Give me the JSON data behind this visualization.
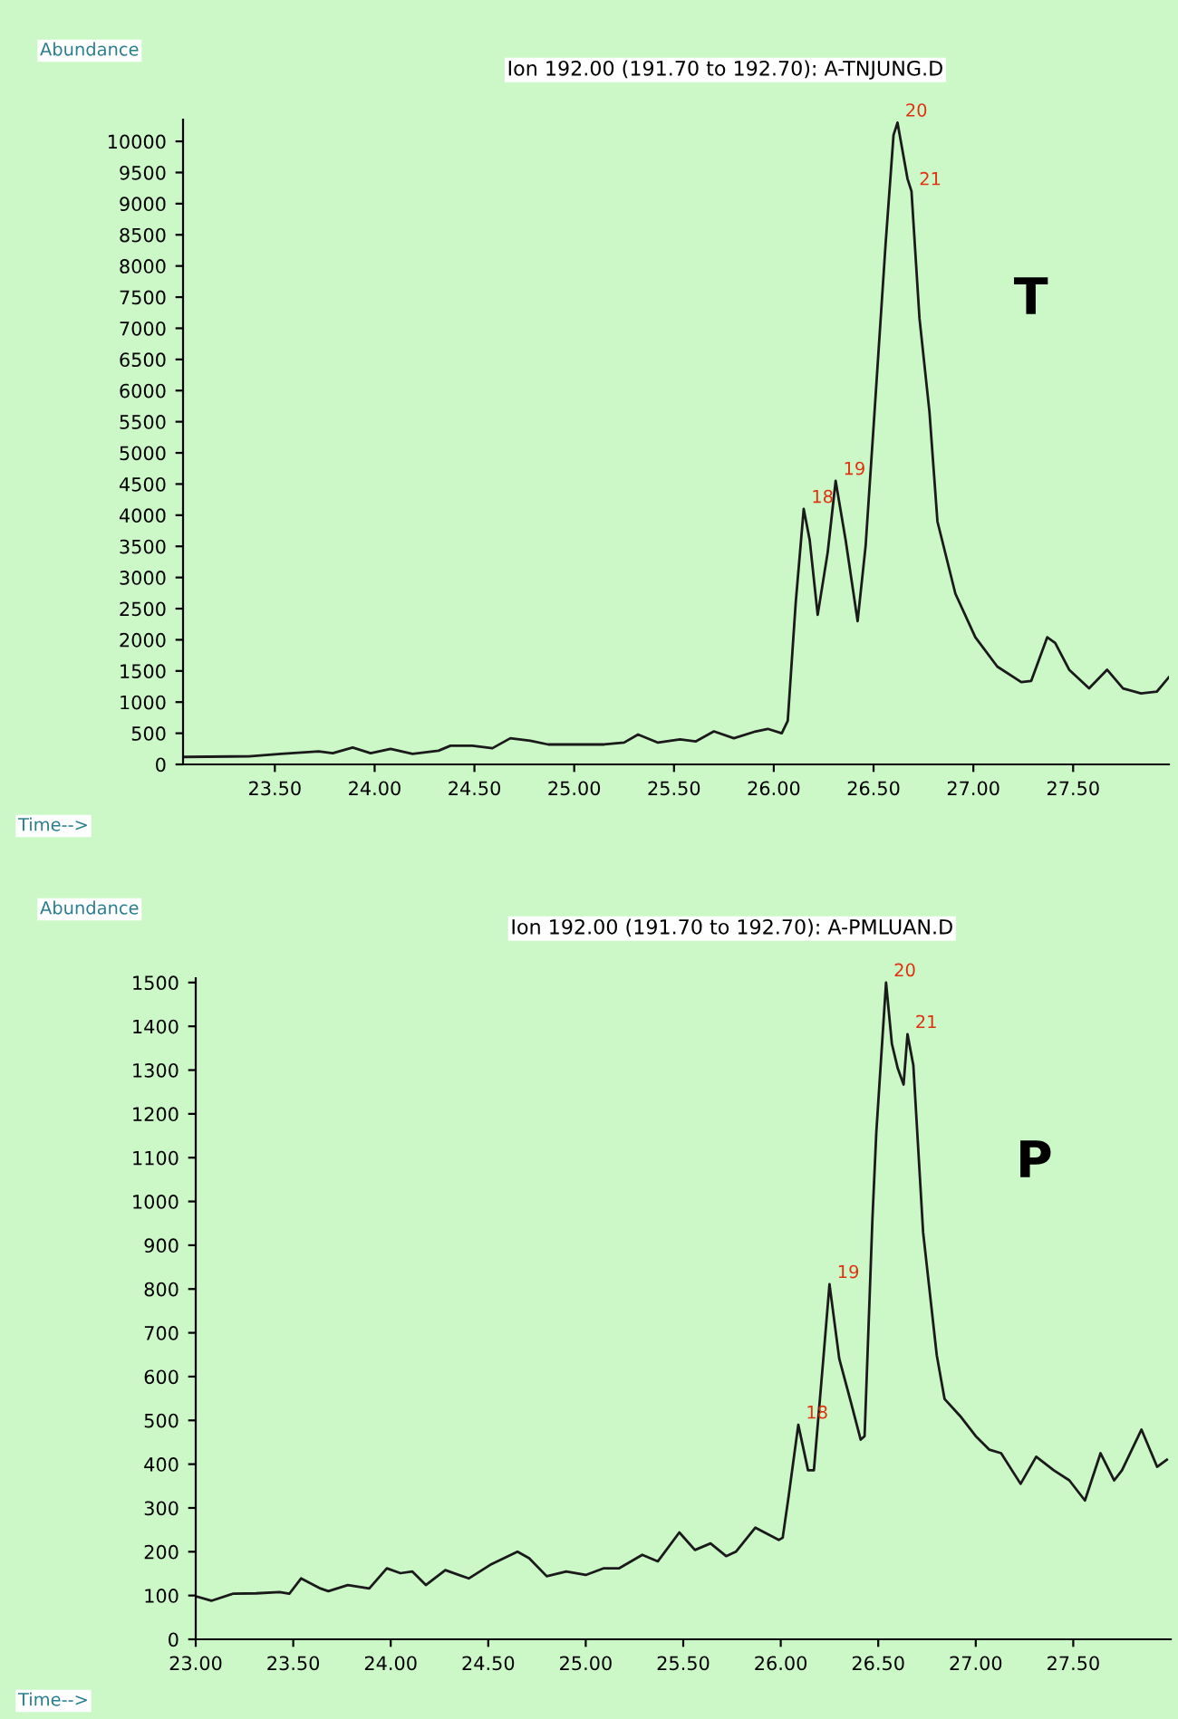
{
  "chart_data": [
    {
      "type": "line",
      "title": "Ion 192.00 (191.70 to 192.70): A-TNJUNG.D",
      "xlabel": "Time-->",
      "ylabel": "Abundance",
      "grid": false,
      "marker": "none",
      "line_style": "solid",
      "xlim": [
        23.04,
        27.98
      ],
      "xticks": [
        {
          "value": 23.5,
          "label": "23.50"
        },
        {
          "value": 24.0,
          "label": "24.00"
        },
        {
          "value": 24.5,
          "label": "24.50"
        },
        {
          "value": 25.0,
          "label": "25.00"
        },
        {
          "value": 25.5,
          "label": "25.50"
        },
        {
          "value": 26.0,
          "label": "26.00"
        },
        {
          "value": 26.5,
          "label": "26.50"
        },
        {
          "value": 27.0,
          "label": "27.00"
        },
        {
          "value": 27.5,
          "label": "27.50"
        }
      ],
      "ylim": [
        0,
        10350
      ],
      "yticks": [
        0,
        500,
        1000,
        1500,
        2000,
        2500,
        3000,
        3500,
        4000,
        4500,
        5000,
        5500,
        6000,
        6500,
        7000,
        7500,
        8000,
        8500,
        9000,
        9500,
        10000
      ],
      "series": [
        {
          "color": "#1a1a1a",
          "x": [
            23.05,
            23.37,
            23.53,
            23.72,
            23.79,
            23.89,
            23.98,
            24.08,
            24.19,
            24.32,
            24.38,
            24.49,
            24.59,
            24.68,
            24.78,
            24.87,
            25.15,
            25.25,
            25.32,
            25.42,
            25.53,
            25.61,
            25.7,
            25.8,
            25.91,
            25.97,
            26.04,
            26.07,
            26.11,
            26.15,
            26.18,
            26.22,
            26.27,
            26.31,
            26.36,
            26.42,
            26.46,
            26.5,
            26.56,
            26.6,
            26.62,
            26.67,
            26.69,
            26.73,
            26.78,
            26.82,
            26.91,
            27.01,
            27.12,
            27.24,
            27.29,
            27.37,
            27.41,
            27.48,
            27.58,
            27.67,
            27.75,
            27.84,
            27.92,
            27.98
          ],
          "values": [
            120,
            130,
            170,
            210,
            180,
            270,
            180,
            250,
            170,
            220,
            300,
            300,
            260,
            420,
            380,
            320,
            320,
            350,
            480,
            350,
            400,
            370,
            530,
            420,
            530,
            570,
            500,
            700,
            2600,
            4100,
            3600,
            2400,
            3400,
            4550,
            3600,
            2300,
            3500,
            5420,
            8340,
            10100,
            10300,
            9400,
            9200,
            7160,
            5660,
            3900,
            2740,
            2040,
            1570,
            1320,
            1340,
            2040,
            1950,
            1520,
            1220,
            1520,
            1220,
            1140,
            1170,
            1400
          ]
        }
      ],
      "annotations": [
        {
          "text": "18",
          "x": 26.15,
          "y": 4100
        },
        {
          "text": "19",
          "x": 26.31,
          "y": 4550
        },
        {
          "text": "20",
          "x": 26.62,
          "y": 10300
        },
        {
          "text": "21",
          "x": 26.69,
          "y": 9200
        },
        "T"
      ]
    },
    {
      "type": "line",
      "title": "Ion 192.00 (191.70 to 192.70): A-PMLUAN.D",
      "xlabel": "Time-->",
      "ylabel": "Abundance",
      "grid": false,
      "marker": "none",
      "line_style": "solid",
      "xlim": [
        23.0,
        28.0
      ],
      "xticks": [
        {
          "value": 23.0,
          "label": "23.00"
        },
        {
          "value": 23.5,
          "label": "23.50"
        },
        {
          "value": 24.0,
          "label": "24.00"
        },
        {
          "value": 24.5,
          "label": "24.50"
        },
        {
          "value": 25.0,
          "label": "25.00"
        },
        {
          "value": 25.5,
          "label": "25.50"
        },
        {
          "value": 26.0,
          "label": "26.00"
        },
        {
          "value": 26.5,
          "label": "26.50"
        },
        {
          "value": 27.0,
          "label": "27.00"
        },
        {
          "value": 27.5,
          "label": "27.50"
        }
      ],
      "ylim": [
        0,
        1510
      ],
      "yticks": [
        0,
        100,
        200,
        300,
        400,
        500,
        600,
        700,
        800,
        900,
        1000,
        1100,
        1200,
        1300,
        1400,
        1500
      ],
      "series": [
        {
          "color": "#1a1a1a",
          "x": [
            23.01,
            23.08,
            23.19,
            23.31,
            23.43,
            23.48,
            23.54,
            23.64,
            23.68,
            23.78,
            23.89,
            23.98,
            24.05,
            24.11,
            24.18,
            24.28,
            24.4,
            24.51,
            24.65,
            24.71,
            24.8,
            24.9,
            25.0,
            25.09,
            25.17,
            25.29,
            25.37,
            25.48,
            25.56,
            25.64,
            25.72,
            25.77,
            25.87,
            25.99,
            26.01,
            26.04,
            26.09,
            26.14,
            26.17,
            26.22,
            26.25,
            26.3,
            26.36,
            26.41,
            26.43,
            26.47,
            26.49,
            26.54,
            26.57,
            26.6,
            26.63,
            26.65,
            26.68,
            26.73,
            26.8,
            26.84,
            26.92,
            27.0,
            27.07,
            27.13,
            27.23,
            27.31,
            27.4,
            27.48,
            27.56,
            27.64,
            27.71,
            27.75,
            27.85,
            27.93,
            27.98
          ],
          "values": [
            97,
            88,
            104,
            105,
            108,
            104,
            139,
            116,
            110,
            124,
            116,
            162,
            151,
            155,
            124,
            158,
            139,
            170,
            200,
            185,
            144,
            155,
            147,
            162,
            162,
            193,
            178,
            244,
            204,
            219,
            190,
            200,
            255,
            227,
            232,
            325,
            490,
            386,
            386,
            649,
            811,
            641,
            541,
            456,
            464,
            958,
            1157,
            1500,
            1360,
            1304,
            1267,
            1382,
            1311,
            930,
            649,
            549,
            510,
            464,
            433,
            425,
            355,
            417,
            386,
            363,
            317,
            425,
            363,
            386,
            479,
            394,
            410
          ]
        }
      ],
      "annotations": [
        {
          "text": "18",
          "x": 26.09,
          "y": 490
        },
        {
          "text": "19",
          "x": 26.25,
          "y": 811
        },
        {
          "text": "20",
          "x": 26.54,
          "y": 1500
        },
        {
          "text": "21",
          "x": 26.65,
          "y": 1382
        },
        "P"
      ]
    }
  ]
}
